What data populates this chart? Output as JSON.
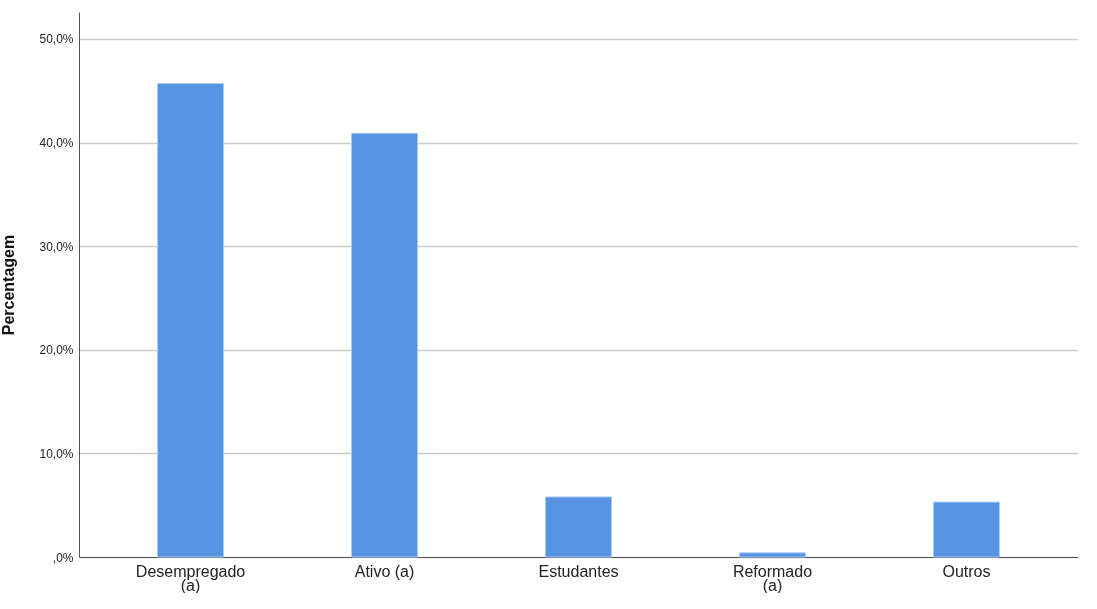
{
  "chart_data": {
    "type": "bar",
    "ylabel": "Percentagem",
    "categories": [
      "Desempregado (a)",
      "Ativo (a)",
      "Estudantes",
      "Reformado (a)",
      "Outros"
    ],
    "values": [
      45.7,
      40.9,
      5.8,
      0.4,
      5.3
    ],
    "color": "#5694e3",
    "ylim": [
      0,
      52.6
    ],
    "yticks": [
      {
        "value": 0,
        "label": ",0%"
      },
      {
        "value": 10,
        "label": "10,0%"
      },
      {
        "value": 20,
        "label": "20,0%"
      },
      {
        "value": 30,
        "label": "30,0%"
      },
      {
        "value": 40,
        "label": "40,0%"
      },
      {
        "value": 50,
        "label": "50,0%"
      }
    ],
    "grid": "y"
  }
}
